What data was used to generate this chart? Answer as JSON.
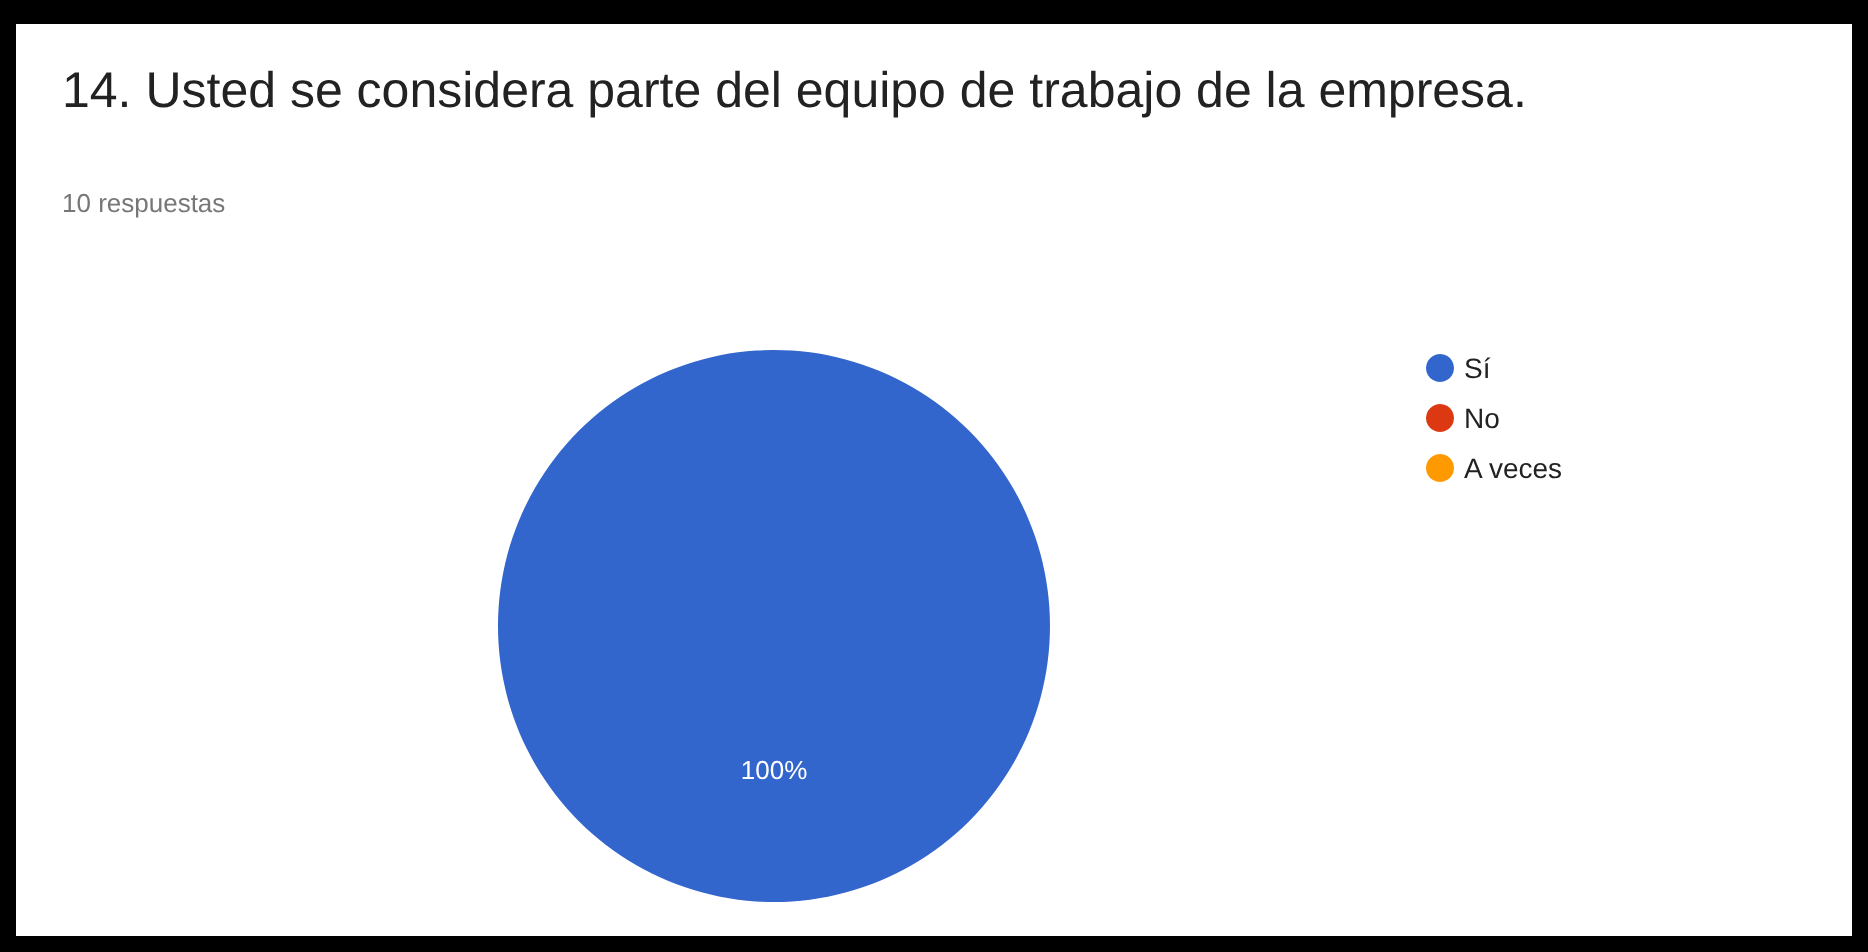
{
  "chart_data": {
    "type": "pie",
    "title": "14. Usted se considera parte del equipo de trabajo de la empresa.",
    "subtitle": "10 respuestas",
    "categories": [
      "Sí",
      "No",
      "A veces"
    ],
    "values": [
      100,
      0,
      0
    ],
    "colors": [
      "#3366cc",
      "#dc3912",
      "#ff9900"
    ],
    "value_labels": [
      "100%",
      null,
      null
    ],
    "legend": "right"
  }
}
